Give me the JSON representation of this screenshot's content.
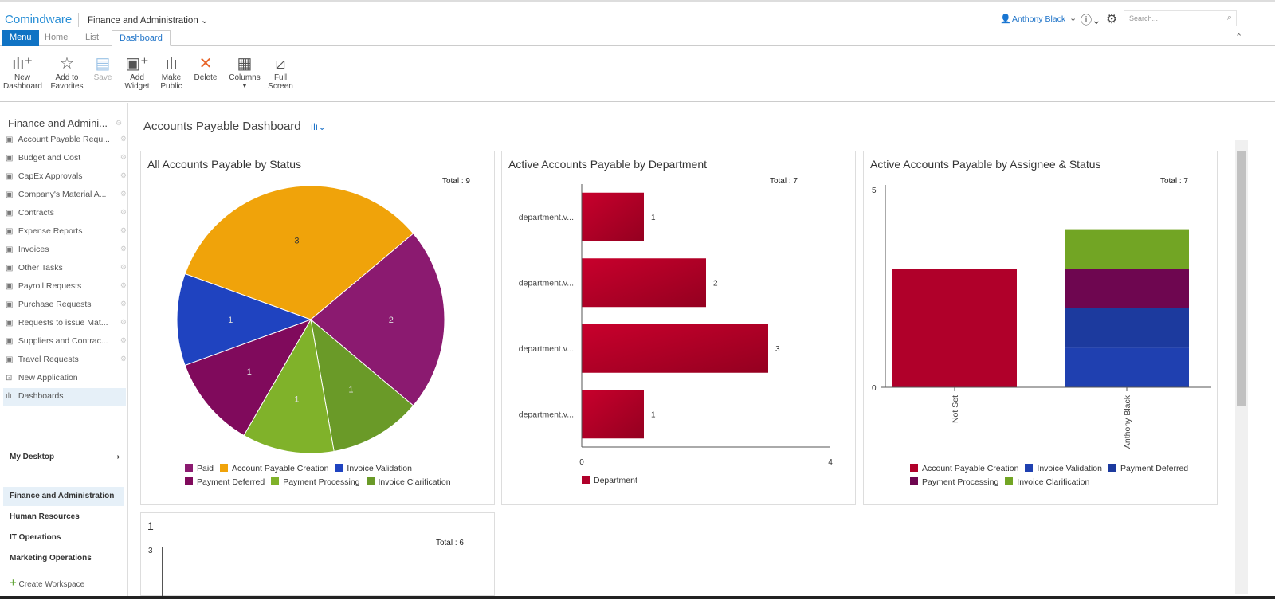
{
  "header": {
    "logo": "Comindware",
    "workspace": "Finance and Administration",
    "user": "Anthony Black",
    "search_placeholder": "Search..."
  },
  "tabs": [
    "Menu",
    "Home",
    "List",
    "Dashboard"
  ],
  "ribbon": [
    {
      "label": "New Dashboard",
      "icon": "new-dashboard-icon"
    },
    {
      "label": "Add to Favorites",
      "icon": "star-icon"
    },
    {
      "label": "Save",
      "icon": "save-icon"
    },
    {
      "label": "Add Widget",
      "icon": "add-widget-icon"
    },
    {
      "label": "Make Public",
      "icon": "make-public-icon"
    },
    {
      "label": "Delete",
      "icon": "delete-icon"
    },
    {
      "label": "Columns",
      "icon": "columns-icon"
    },
    {
      "label": "Full Screen",
      "icon": "fullscreen-icon"
    }
  ],
  "sidebar": {
    "header": "Finance and Admini...",
    "items": [
      "Account Payable Requ...",
      "Budget and Cost",
      "CapEx Approvals",
      "Company's Material A...",
      "Contracts",
      "Expense Reports",
      "Invoices",
      "Other Tasks",
      "Payroll Requests",
      "Purchase Requests",
      "Requests to issue Mat...",
      "Suppliers and Contrac...",
      "Travel Requests",
      "New Application",
      "Dashboards"
    ],
    "my_desktop": "My Desktop",
    "workspaces": [
      "Finance and Administration",
      "Human Resources",
      "IT Operations",
      "Marketing Operations"
    ],
    "create": "Create Workspace"
  },
  "page_title": "Accounts Payable Dashboard",
  "chart_data": [
    {
      "type": "pie",
      "title": "All Accounts Payable by Status",
      "total": "Total : 9",
      "slices": [
        {
          "name": "Account Payable Creation",
          "value": 3,
          "color": "#f0a30a"
        },
        {
          "name": "Paid",
          "value": 2,
          "color": "#8b1a70"
        },
        {
          "name": "Invoice Clarification",
          "value": 1,
          "color": "#6a9a28"
        },
        {
          "name": "Payment Processing",
          "value": 1,
          "color": "#80b22a"
        },
        {
          "name": "Payment Deferred",
          "value": 1,
          "color": "#800a5c"
        },
        {
          "name": "Invoice Validation",
          "value": 1,
          "color": "#1f43c0"
        }
      ],
      "legend": [
        {
          "name": "Paid",
          "color": "#8b1a70"
        },
        {
          "name": "Account Payable Creation",
          "color": "#f0a30a"
        },
        {
          "name": "Invoice Validation",
          "color": "#1f43c0"
        },
        {
          "name": "Payment Deferred",
          "color": "#800a5c"
        },
        {
          "name": "Payment Processing",
          "color": "#80b22a"
        },
        {
          "name": "Invoice Clarification",
          "color": "#6a9a28"
        }
      ]
    },
    {
      "type": "bar",
      "orientation": "horizontal",
      "title": "Active Accounts Payable by Department",
      "total": "Total : 7",
      "categories": [
        "department.v...",
        "department.v...",
        "department.v...",
        "department.v..."
      ],
      "values": [
        1,
        2,
        3,
        1
      ],
      "xlim": [
        0,
        4
      ],
      "xticks": [
        "0",
        "4"
      ],
      "series": [
        {
          "name": "Department",
          "color": "#b0002a"
        }
      ]
    },
    {
      "type": "bar",
      "stacked": true,
      "title": "Active Accounts Payable by Assignee & Status",
      "total": "Total : 7",
      "categories": [
        "Not Set",
        "Anthony Black"
      ],
      "ylim": [
        0,
        5
      ],
      "yticks": [
        "0",
        "5"
      ],
      "series": [
        {
          "name": "Account Payable Creation",
          "color": "#b0002a",
          "values": [
            3,
            0
          ]
        },
        {
          "name": "Invoice Validation",
          "color": "#1f40b0",
          "values": [
            0,
            1
          ]
        },
        {
          "name": "Payment Deferred",
          "color": "#1c3a9e",
          "values": [
            0,
            1
          ]
        },
        {
          "name": "Payment Processing",
          "color": "#6e0650",
          "values": [
            0,
            1
          ]
        },
        {
          "name": "Invoice Clarification",
          "color": "#72a524",
          "values": [
            0,
            1
          ]
        }
      ]
    },
    {
      "type": "bar",
      "title": "1",
      "total": "Total : 6",
      "yticks": [
        "3"
      ]
    }
  ]
}
